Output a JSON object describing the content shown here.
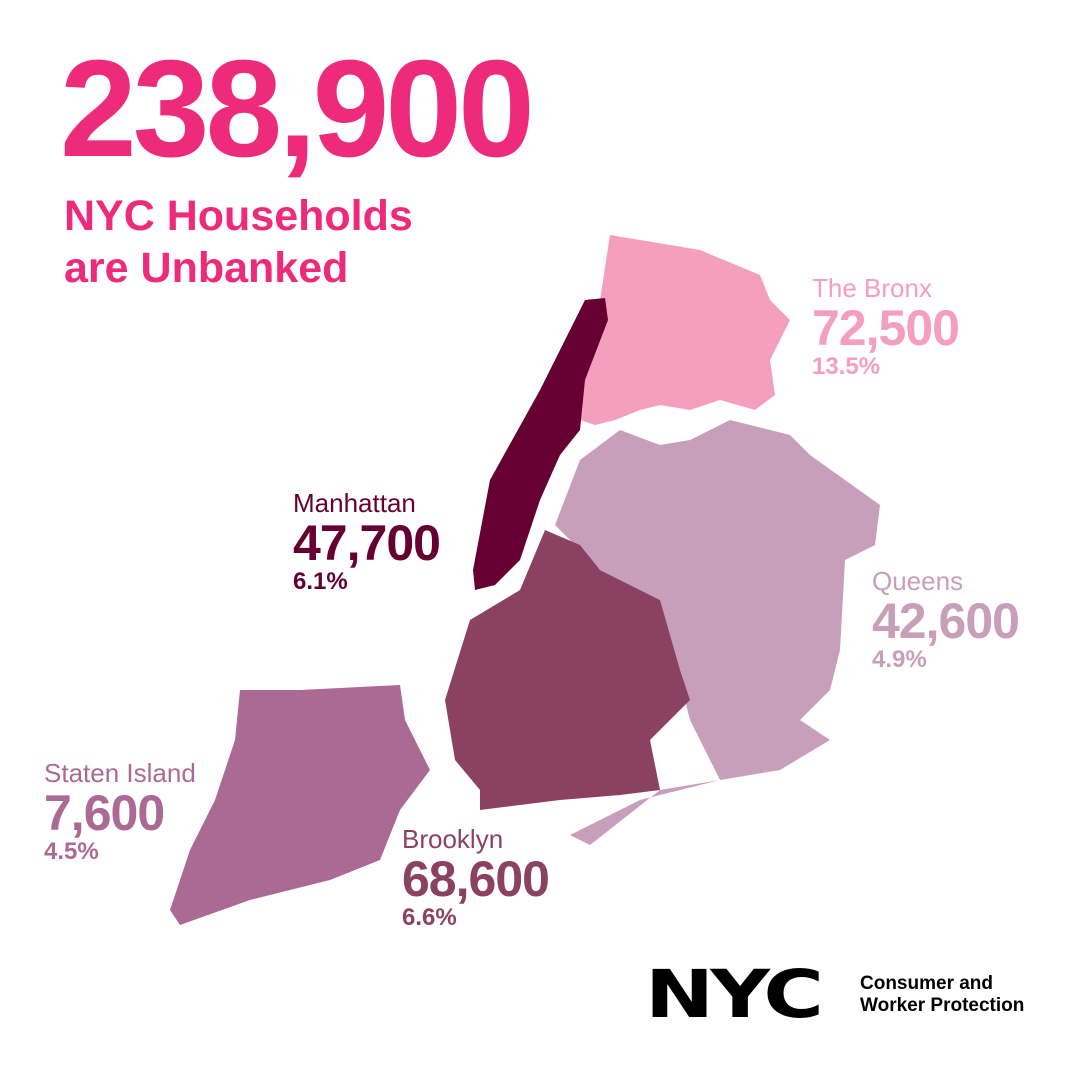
{
  "headline": {
    "total": "238,900",
    "line1": "NYC Households",
    "line2": "are Unbanked"
  },
  "boroughs": {
    "bronx": {
      "name": "The Bronx",
      "count": "72,500",
      "pct": "13.5%",
      "color": "#f49fbb"
    },
    "manhattan": {
      "name": "Manhattan",
      "count": "47,700",
      "pct": "6.1%",
      "color": "#660033"
    },
    "queens": {
      "name": "Queens",
      "count": "42,600",
      "pct": "4.9%",
      "color": "#c89fba"
    },
    "staten_island": {
      "name": "Staten Island",
      "count": "7,600",
      "pct": "4.5%",
      "color": "#ab6a94"
    },
    "brooklyn": {
      "name": "Brooklyn",
      "count": "68,600",
      "pct": "6.6%",
      "color": "#8b4262"
    }
  },
  "accent_color": "#ee2a7b",
  "logo": {
    "mark": "NYC",
    "agency_line1": "Consumer and",
    "agency_line2": "Worker Protection"
  }
}
